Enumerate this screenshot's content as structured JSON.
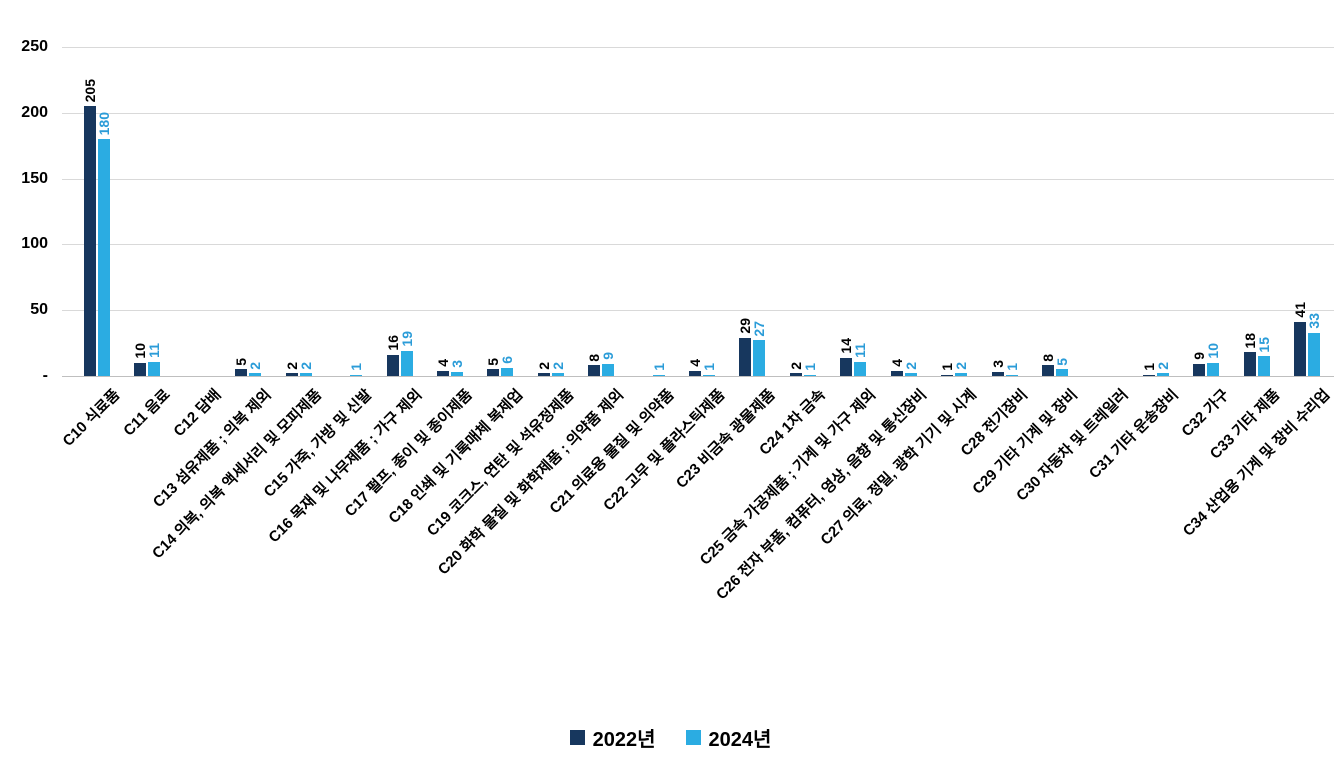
{
  "chart_data": {
    "type": "bar",
    "title": "",
    "xlabel": "",
    "ylabel": "",
    "ylim": [
      0,
      250
    ],
    "yticks": [
      0,
      50,
      100,
      150,
      200,
      250
    ],
    "ytick_labels": [
      "-",
      "50",
      "100",
      "150",
      "200",
      "250"
    ],
    "grid": true,
    "categories": [
      "C10 식료품",
      "C11 음료",
      "C12 담배",
      "C13 섬유제품 ; 의복 제외",
      "C14 의복, 의복 액세서리 및 모피제품",
      "C15 가죽, 가방 및 신발",
      "C16 목재 및 나무제품 ; 가구 제외",
      "C17 펄프, 종이 및 종이제품",
      "C18 인쇄 및 기록매체 복제업",
      "C19 코크스, 연탄 및 석유정제품",
      "C20 화학 물질 및 화학제품 ; 의약품 제외",
      "C21 의료용 물질 및 의약품",
      "C22 고무 및 플라스틱제품",
      "C23 비금속 광물제품",
      "C24 1차 금속",
      "C25 금속 가공제품 ; 기계 및 가구 제외",
      "C26 전자 부품, 컴퓨터, 영상, 음향 및 통신장비",
      "C27 의료, 정밀, 광학 기기 및 시계",
      "C28 전기장비",
      "C29 기타 기계 및 장비",
      "C30 자동차 및 트레일러",
      "C31 기타 운송장비",
      "C32 가구",
      "C33 기타 제품",
      "C34 산업용 기계 및 장비 수리업"
    ],
    "series": [
      {
        "name": "2022년",
        "color": "#17375E",
        "label_color": "#000000",
        "values": [
          205,
          10,
          null,
          5,
          2,
          null,
          16,
          4,
          5,
          2,
          8,
          null,
          4,
          29,
          2,
          14,
          4,
          1,
          3,
          8,
          null,
          1,
          9,
          18,
          41
        ]
      },
      {
        "name": "2024년",
        "color": "#2BACE2",
        "label_color": "#2B9CD8",
        "values": [
          180,
          11,
          null,
          2,
          2,
          1,
          19,
          3,
          6,
          2,
          9,
          1,
          1,
          27,
          1,
          11,
          2,
          2,
          1,
          5,
          null,
          2,
          10,
          15,
          33
        ]
      }
    ],
    "legend": {
      "position": "bottom",
      "items": [
        {
          "label": "2022년"
        },
        {
          "label": "2024년"
        }
      ]
    }
  }
}
